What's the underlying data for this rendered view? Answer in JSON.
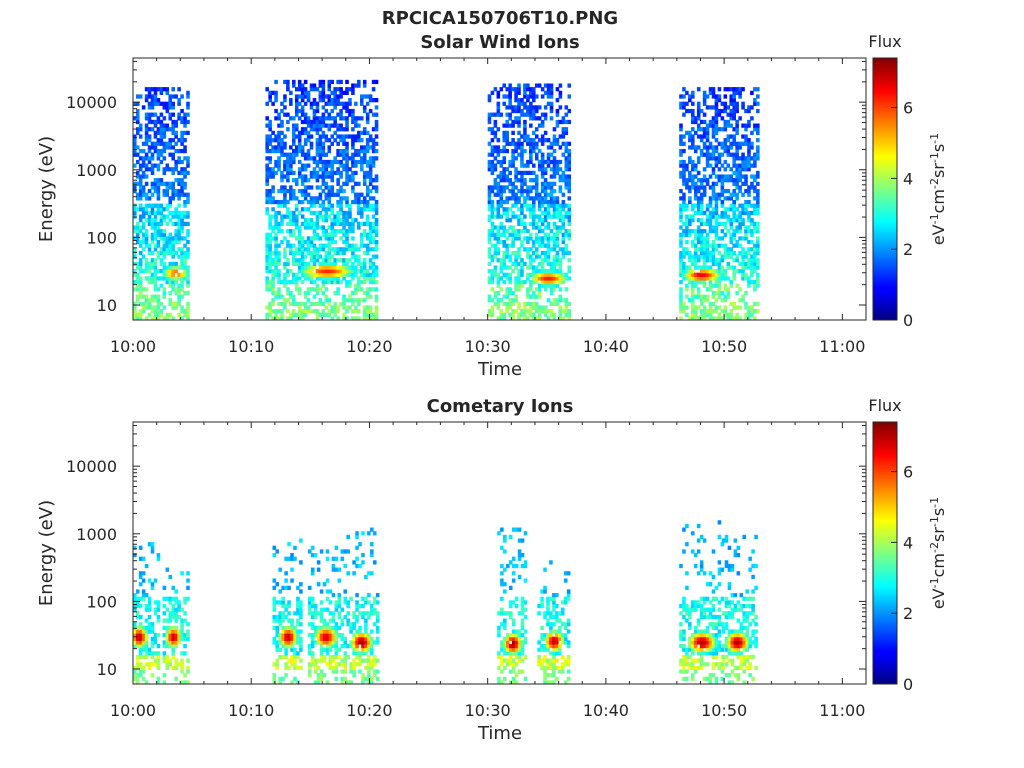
{
  "title": "RPCICA150706T10.PNG",
  "chart_data": [
    {
      "type": "heatmap",
      "title": "Solar Wind Ions",
      "xlabel": "Time",
      "ylabel": "Energy (eV)",
      "x_ticks": [
        "10:00",
        "10:10",
        "10:20",
        "10:30",
        "10:40",
        "10:50",
        "11:00"
      ],
      "y_ticks": [
        "10",
        "100",
        "1000",
        "10000"
      ],
      "y_scale": "log",
      "xlim_minutes": [
        0,
        62
      ],
      "ylim_eV": [
        6,
        45000
      ],
      "colorbar": {
        "label": "Flux",
        "unit": "eV-1cm-2sr-1s-1",
        "range": [
          0,
          7.4
        ],
        "ticks": [
          "0",
          "2",
          "4",
          "6"
        ]
      },
      "bursts": [
        {
          "t_start": 0.0,
          "t_end": 4.6,
          "peak_min": 3.5,
          "peak_eV": 30,
          "peak_flux": 5.8,
          "max_eV": 17000,
          "core_min_eV": 100
        },
        {
          "t_start": 11.2,
          "t_end": 20.5,
          "peak_min": 16.3,
          "peak_eV": 32,
          "peak_flux": 6.2,
          "max_eV": 22000,
          "core_min_eV": 50
        },
        {
          "t_start": 30.0,
          "t_end": 36.8,
          "peak_min": 35.0,
          "peak_eV": 25,
          "peak_flux": 6.3,
          "max_eV": 20000,
          "core_min_eV": 60
        },
        {
          "t_start": 46.2,
          "t_end": 52.8,
          "peak_min": 48.0,
          "peak_eV": 28,
          "peak_flux": 6.6,
          "max_eV": 17000,
          "core_min_eV": 60
        }
      ]
    },
    {
      "type": "heatmap",
      "title": "Cometary Ions",
      "xlabel": "Time",
      "ylabel": "Energy (eV)",
      "x_ticks": [
        "10:00",
        "10:10",
        "10:20",
        "10:30",
        "10:40",
        "10:50",
        "11:00"
      ],
      "y_ticks": [
        "10",
        "100",
        "1000",
        "10000"
      ],
      "y_scale": "log",
      "xlim_minutes": [
        0,
        62
      ],
      "ylim_eV": [
        6,
        45000
      ],
      "colorbar": {
        "label": "Flux",
        "unit": "eV-1cm-2sr-1s-1",
        "range": [
          0,
          7.4
        ],
        "ticks": [
          "0",
          "2",
          "4",
          "6"
        ]
      },
      "bursts": [
        {
          "t_start": 0.0,
          "t_end": 2.2,
          "peak_min": 0.4,
          "peak_eV": 30,
          "peak_flux": 7.0,
          "max_eV": 800
        },
        {
          "t_start": 2.5,
          "t_end": 4.6,
          "peak_min": 3.3,
          "peak_eV": 30,
          "peak_flux": 6.9,
          "max_eV": 300
        },
        {
          "t_start": 11.8,
          "t_end": 14.2,
          "peak_min": 13.0,
          "peak_eV": 30,
          "peak_flux": 7.0,
          "max_eV": 900
        },
        {
          "t_start": 14.8,
          "t_end": 17.8,
          "peak_min": 16.2,
          "peak_eV": 30,
          "peak_flux": 6.8,
          "max_eV": 700
        },
        {
          "t_start": 17.8,
          "t_end": 20.6,
          "peak_min": 19.2,
          "peak_eV": 25,
          "peak_flux": 7.2,
          "max_eV": 1200
        },
        {
          "t_start": 30.8,
          "t_end": 33.2,
          "peak_min": 32.0,
          "peak_eV": 24,
          "peak_flux": 7.2,
          "max_eV": 1300
        },
        {
          "t_start": 34.2,
          "t_end": 36.8,
          "peak_min": 35.5,
          "peak_eV": 26,
          "peak_flux": 6.9,
          "max_eV": 400
        },
        {
          "t_start": 46.2,
          "t_end": 49.8,
          "peak_min": 48.0,
          "peak_eV": 25,
          "peak_flux": 7.1,
          "max_eV": 1500
        },
        {
          "t_start": 49.8,
          "t_end": 52.8,
          "peak_min": 51.0,
          "peak_eV": 25,
          "peak_flux": 7.1,
          "max_eV": 1000
        }
      ]
    }
  ]
}
